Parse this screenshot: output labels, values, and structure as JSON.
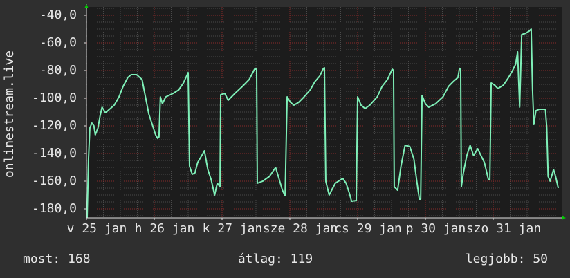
{
  "chart_data": {
    "type": "line",
    "ylabel": "onlinestream.live",
    "color": "#7ff0b8",
    "xlim": [
      0,
      7
    ],
    "xticks": [
      {
        "value": 0,
        "label": "v 25 jan"
      },
      {
        "value": 1,
        "label": "h 26 jan"
      },
      {
        "value": 2,
        "label": "k 27 jan"
      },
      {
        "value": 3,
        "label": "sze 28 jan"
      },
      {
        "value": 4,
        "label": "cs 29 jan"
      },
      {
        "value": 5,
        "label": "p 30 jan"
      },
      {
        "value": 6,
        "label": "szo 31 jan"
      }
    ],
    "ylim": [
      -186.5,
      -34
    ],
    "yticks": [
      {
        "value": -40,
        "label": "-40,0"
      },
      {
        "value": -60,
        "label": "-60,0"
      },
      {
        "value": -80,
        "label": "-80,0"
      },
      {
        "value": -100,
        "label": "-100,0"
      },
      {
        "value": -120,
        "label": "-120,0"
      },
      {
        "value": -140,
        "label": "-140,0"
      },
      {
        "value": -160,
        "label": "-160,0"
      },
      {
        "value": -180,
        "label": "-180,0"
      }
    ],
    "grid": true,
    "x": [
      0.01,
      0.03,
      0.05,
      0.08,
      0.11,
      0.13,
      0.17,
      0.2,
      0.23,
      0.28,
      0.34,
      0.41,
      0.48,
      0.54,
      0.61,
      0.66,
      0.74,
      0.82,
      0.87,
      0.92,
      0.97,
      1.02,
      1.05,
      1.07,
      1.09,
      1.12,
      1.17,
      1.28,
      1.36,
      1.43,
      1.5,
      1.52,
      1.56,
      1.6,
      1.64,
      1.7,
      1.74,
      1.79,
      1.84,
      1.89,
      1.93,
      1.97,
      1.98,
      2.04,
      2.09,
      2.19,
      2.3,
      2.4,
      2.48,
      2.51,
      2.52,
      2.6,
      2.7,
      2.79,
      2.83,
      2.89,
      2.93,
      2.96,
      3.01,
      3.06,
      3.13,
      3.21,
      3.3,
      3.37,
      3.44,
      3.49,
      3.51,
      3.53,
      3.58,
      3.67,
      3.78,
      3.83,
      3.88,
      3.91,
      3.98,
      4,
      4.05,
      4.11,
      4.18,
      4.29,
      4.36,
      4.44,
      4.51,
      4.53,
      4.54,
      4.59,
      4.64,
      4.7,
      4.77,
      4.83,
      4.87,
      4.91,
      4.93,
      4.95,
      5,
      5.05,
      5.15,
      5.26,
      5.34,
      5.41,
      5.48,
      5.5,
      5.52,
      5.53,
      5.56,
      5.61,
      5.66,
      5.71,
      5.77,
      5.87,
      5.93,
      5.95,
      5.97,
      6.02,
      6.07,
      6.15,
      6.22,
      6.28,
      6.33,
      6.36,
      6.39,
      6.42,
      6.48,
      6.53,
      6.56,
      6.58,
      6.6,
      6.63,
      6.68,
      6.77,
      6.79,
      6.81,
      6.84,
      6.89,
      6.92,
      6.96
    ],
    "values": [
      -186.5,
      -144,
      -121.5,
      -118,
      -120,
      -126.5,
      -121.5,
      -113,
      -106.5,
      -110.5,
      -108,
      -105,
      -99,
      -91.5,
      -85,
      -83,
      -83,
      -86.5,
      -99,
      -111.5,
      -119,
      -126.5,
      -129,
      -128,
      -99,
      -104,
      -99,
      -96.5,
      -94,
      -89,
      -81.5,
      -149,
      -155,
      -154,
      -146.5,
      -141.5,
      -138,
      -151.5,
      -159,
      -170,
      -161.5,
      -164,
      -97.5,
      -96.5,
      -101.5,
      -96.5,
      -91.5,
      -86.5,
      -79,
      -79,
      -161.5,
      -160,
      -156.5,
      -150,
      -156.5,
      -166.5,
      -170.5,
      -99,
      -103,
      -105,
      -103,
      -99,
      -94,
      -88,
      -84,
      -79,
      -78,
      -160,
      -170,
      -161.5,
      -158,
      -161.5,
      -169,
      -174.5,
      -174,
      -99,
      -105,
      -107.5,
      -105,
      -99,
      -91.5,
      -86.5,
      -79,
      -80,
      -164,
      -166.5,
      -149,
      -134,
      -135,
      -144,
      -159,
      -173,
      -173,
      -98,
      -104,
      -106.5,
      -104,
      -99,
      -91.5,
      -88,
      -85,
      -79,
      -79,
      -164,
      -154,
      -141.5,
      -134,
      -141.5,
      -136.5,
      -146.5,
      -159,
      -159,
      -89,
      -90.5,
      -93,
      -90.5,
      -85.5,
      -80.5,
      -75.5,
      -66.5,
      -106.5,
      -54,
      -53,
      -51.5,
      -50,
      -94,
      -119,
      -109,
      -108,
      -108,
      -121.5,
      -156.5,
      -160,
      -151.5,
      -156.5,
      -165
    ],
    "footer": [
      "most: 168",
      "átlag: 119",
      "legjobb: 50"
    ]
  }
}
